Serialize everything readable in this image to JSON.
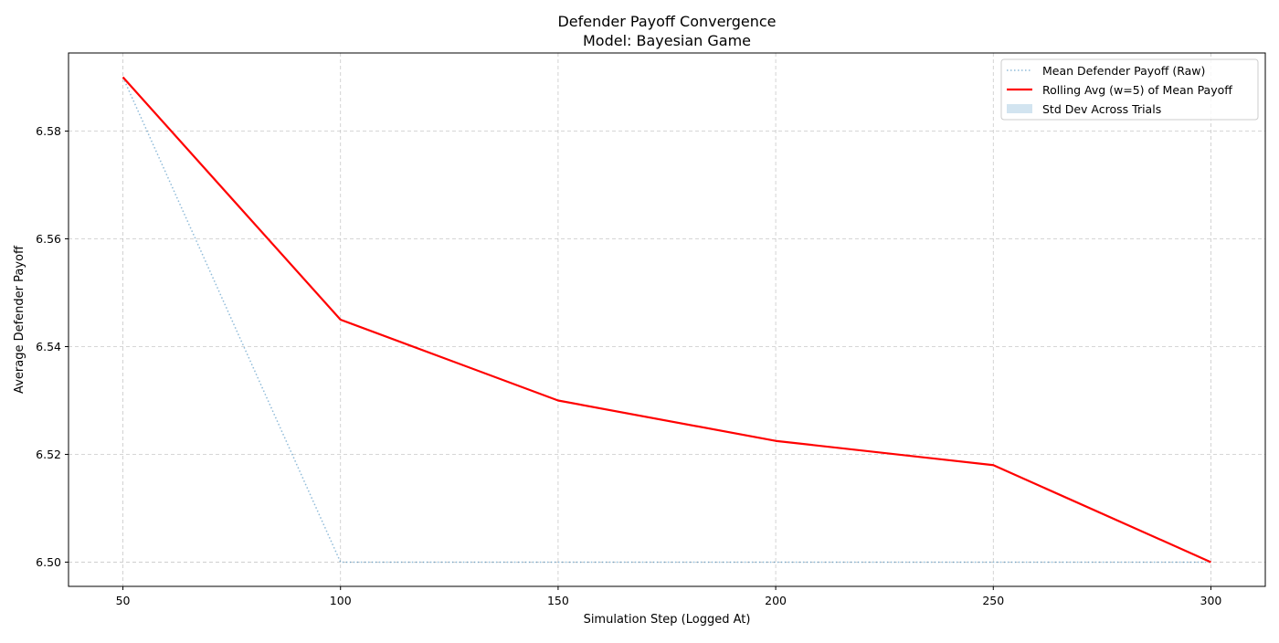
{
  "chart_data": {
    "type": "line",
    "title": "Defender Payoff Convergence",
    "subtitle": "Model: Bayesian Game",
    "xlabel": "Simulation Step (Logged At)",
    "ylabel": "Average Defender Payoff",
    "x": [
      50,
      100,
      150,
      200,
      250,
      300
    ],
    "xlim": [
      37.5,
      312.5
    ],
    "ylim": [
      6.4955,
      6.5945
    ],
    "xticks": [
      50,
      100,
      150,
      200,
      250,
      300
    ],
    "yticks": [
      6.5,
      6.52,
      6.54,
      6.56,
      6.58
    ],
    "ytick_labels": [
      "6.50",
      "6.52",
      "6.54",
      "6.56",
      "6.58"
    ],
    "grid": true,
    "legend_position": "top-right",
    "series": [
      {
        "name": "Mean Defender Payoff (Raw)",
        "style": "dotted",
        "color": "#1f77b4",
        "values": [
          6.59,
          6.5,
          6.5,
          6.5,
          6.5,
          6.5
        ]
      },
      {
        "name": "Rolling Avg (w=5) of Mean Payoff",
        "style": "solid",
        "color": "#ff0000",
        "values": [
          6.59,
          6.545,
          6.53,
          6.5225,
          6.518,
          6.5
        ]
      },
      {
        "name": "Std Dev Across Trials",
        "style": "band",
        "color": "#1f77b4",
        "values": [
          0,
          0,
          0,
          0,
          0,
          0
        ]
      }
    ]
  }
}
